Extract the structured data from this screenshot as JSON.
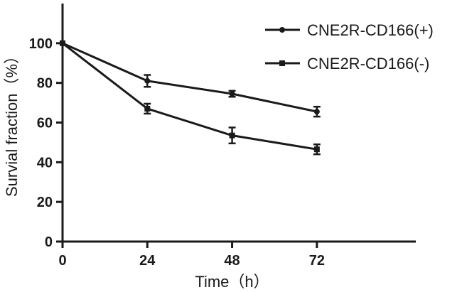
{
  "chart_data": {
    "type": "line",
    "title": "",
    "xlabel": "Time（h）",
    "ylabel": "Survial fraction（%）",
    "x": [
      0,
      24,
      48,
      72
    ],
    "x_tick_labels": [
      "0",
      "24",
      "48",
      "72"
    ],
    "xlim": [
      0,
      100
    ],
    "ylim": [
      0,
      120
    ],
    "y_ticks": [
      0,
      20,
      40,
      60,
      80,
      100
    ],
    "y_tick_labels": [
      "0",
      "20",
      "40",
      "60",
      "80",
      "100"
    ],
    "grid": false,
    "legend_position": "top-right",
    "series": [
      {
        "name": "CNE2R-CD166(+)",
        "marker": "circle",
        "values": [
          100,
          81,
          74.5,
          65.5
        ],
        "errors": [
          0,
          3,
          1.5,
          2.5
        ]
      },
      {
        "name": "CNE2R-CD166(-)",
        "marker": "square",
        "values": [
          100,
          67,
          53.5,
          46.5
        ],
        "errors": [
          0,
          2.5,
          4,
          2.5
        ]
      }
    ]
  }
}
